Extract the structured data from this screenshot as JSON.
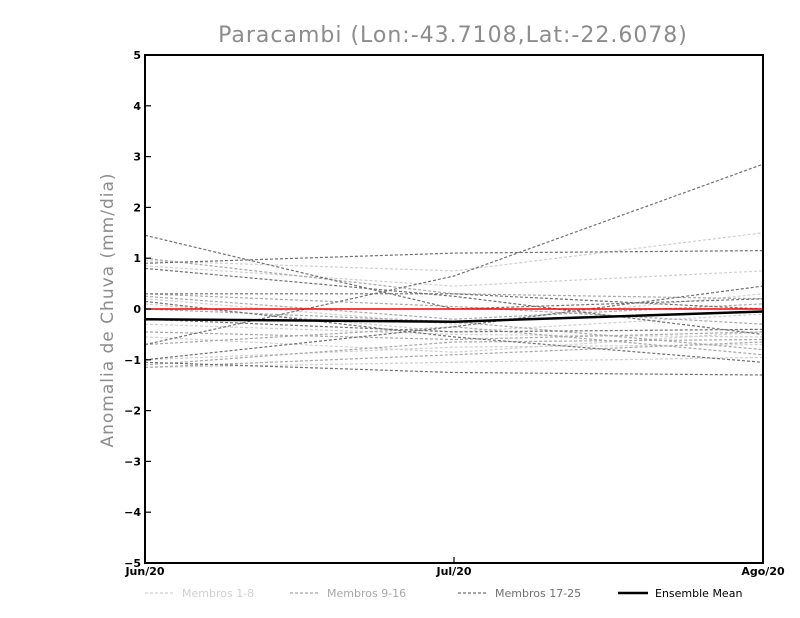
{
  "chart_data": {
    "type": "line",
    "title": "Paracambi (Lon:-43.7108,Lat:-22.6078)",
    "xlabel": "",
    "ylabel": "Anomalia de Chuva (mm/dia)",
    "categories": [
      "Jun/20",
      "Jul/20",
      "Ago/20"
    ],
    "ylim": [
      -5,
      5
    ],
    "yticks": [
      "5",
      "4",
      "3",
      "2",
      "1",
      "0",
      "-1",
      "-2",
      "-3",
      "-4",
      "-5"
    ],
    "grid": false,
    "legend_position": "bottom",
    "series": [
      {
        "group": "Membros 1-8",
        "values": [
          0.95,
          0.75,
          1.5
        ]
      },
      {
        "group": "Membros 1-8",
        "values": [
          0.85,
          0.45,
          0.75
        ]
      },
      {
        "group": "Membros 1-8",
        "values": [
          0.2,
          -0.3,
          0.3
        ]
      },
      {
        "group": "Membros 1-8",
        "values": [
          0.1,
          -0.45,
          -0.1
        ]
      },
      {
        "group": "Membros 1-8",
        "values": [
          -0.3,
          -0.5,
          -0.55
        ]
      },
      {
        "group": "Membros 1-8",
        "values": [
          -0.55,
          -0.85,
          -0.45
        ]
      },
      {
        "group": "Membros 1-8",
        "values": [
          -1.0,
          -0.75,
          -0.7
        ]
      },
      {
        "group": "Membros 1-8",
        "values": [
          -1.15,
          -1.05,
          -0.95
        ]
      },
      {
        "group": "Membros 9-16",
        "values": [
          1.0,
          0.3,
          0.2
        ]
      },
      {
        "group": "Membros 9-16",
        "values": [
          0.3,
          0.05,
          -0.3
        ]
      },
      {
        "group": "Membros 9-16",
        "values": [
          0.25,
          -0.2,
          0.1
        ]
      },
      {
        "group": "Membros 9-16",
        "values": [
          0.0,
          -0.25,
          -0.8
        ]
      },
      {
        "group": "Membros 9-16",
        "values": [
          -0.45,
          -0.6,
          -0.45
        ]
      },
      {
        "group": "Membros 9-16",
        "values": [
          -0.7,
          -0.35,
          -0.9
        ]
      },
      {
        "group": "Membros 9-16",
        "values": [
          -1.1,
          -0.65,
          -0.6
        ]
      },
      {
        "group": "Membros 9-16",
        "values": [
          -1.15,
          -0.9,
          -0.65
        ]
      },
      {
        "group": "Membros 17-25",
        "values": [
          -0.7,
          0.65,
          2.85
        ]
      },
      {
        "group": "Membros 17-25",
        "values": [
          1.45,
          0.0,
          0.2
        ]
      },
      {
        "group": "Membros 17-25",
        "values": [
          0.8,
          0.25,
          -0.5
        ]
      },
      {
        "group": "Membros 17-25",
        "values": [
          0.9,
          1.1,
          1.15
        ]
      },
      {
        "group": "Membros 17-25",
        "values": [
          0.3,
          0.3,
          0.0
        ]
      },
      {
        "group": "Membros 17-25",
        "values": [
          0.15,
          -0.55,
          -1.05
        ]
      },
      {
        "group": "Membros 17-25",
        "values": [
          -0.2,
          -0.45,
          -0.4
        ]
      },
      {
        "group": "Membros 17-25",
        "values": [
          -1.05,
          -1.25,
          -1.3
        ]
      },
      {
        "group": "Membros 17-25",
        "values": [
          -1.0,
          -0.35,
          0.45
        ]
      }
    ],
    "reference_line": {
      "value": 0.0,
      "color": "#ff0000"
    },
    "ensemble_mean": {
      "name": "Ensemble Mean",
      "values": [
        -0.2,
        -0.25,
        -0.05
      ]
    },
    "legend": [
      {
        "label": "Membros 1-8",
        "color": "#d0d0d0",
        "style": "dashed"
      },
      {
        "label": "Membros 9-16",
        "color": "#a8a8a8",
        "style": "dashed"
      },
      {
        "label": "Membros 17-25",
        "color": "#707070",
        "style": "dashed"
      },
      {
        "label": "Ensemble Mean",
        "color": "#000000",
        "style": "solid"
      }
    ]
  }
}
